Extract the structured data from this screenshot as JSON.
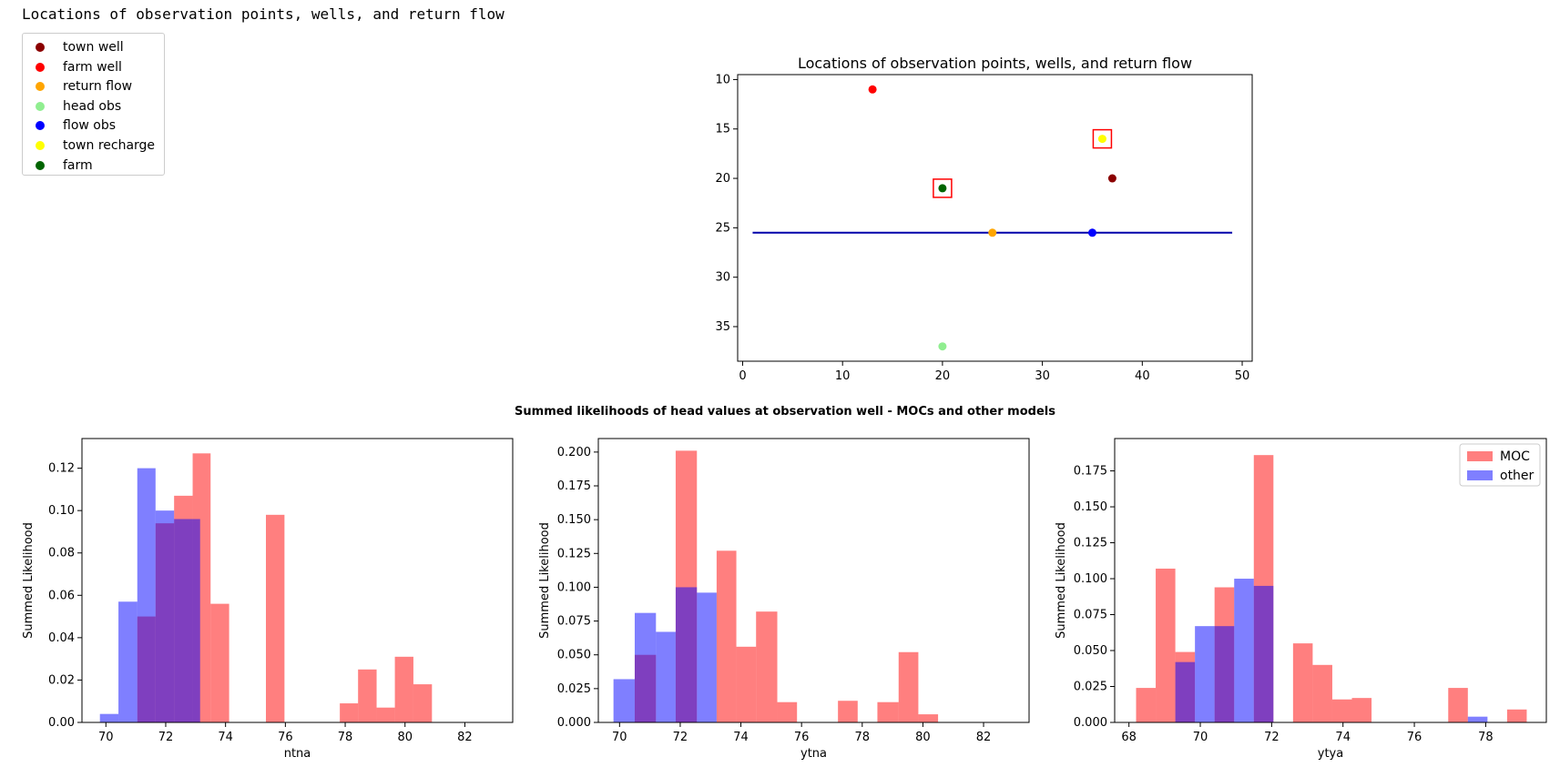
{
  "output_text": "Locations of observation points, wells, and return flow",
  "legend_items": [
    {
      "label": "town well",
      "color": "#8b0000"
    },
    {
      "label": "farm well",
      "color": "#ff0000"
    },
    {
      "label": "return flow",
      "color": "#ffa500"
    },
    {
      "label": "head obs",
      "color": "#90ee90"
    },
    {
      "label": "flow obs",
      "color": "#0000ff"
    },
    {
      "label": "town recharge",
      "color": "#ffff00"
    },
    {
      "label": "farm",
      "color": "#006400"
    }
  ],
  "suptitle": "Summed likelihoods of head values at observation well - MOCs and other models",
  "chart_data": [
    {
      "type": "scatter",
      "title": "Locations of observation points, wells, and return flow",
      "xlim": [
        -0.5,
        51
      ],
      "ylim": [
        9.5,
        38.5
      ],
      "y_inverted": true,
      "xticks": [
        "0",
        "10",
        "20",
        "30",
        "40",
        "50"
      ],
      "yticks": [
        "10",
        "15",
        "20",
        "25",
        "30",
        "35"
      ],
      "points": [
        {
          "x": 37,
          "y": 20,
          "color": "#8b0000"
        },
        {
          "x": 13,
          "y": 11,
          "color": "#ff0000"
        },
        {
          "x": 25,
          "y": 25.5,
          "color": "#ffa500"
        },
        {
          "x": 20,
          "y": 37,
          "color": "#90ee90"
        },
        {
          "x": 35,
          "y": 25.5,
          "color": "#0000ff"
        },
        {
          "x": 36,
          "y": 16,
          "color": "#ffff00"
        },
        {
          "x": 20,
          "y": 21,
          "color": "#006400"
        }
      ],
      "boxes": [
        {
          "x": 20,
          "y": 21,
          "color": "#ff0000"
        },
        {
          "x": 36,
          "y": 16,
          "color": "#ff0000"
        }
      ],
      "line": {
        "x1": 1,
        "x2": 49,
        "y": 25.5,
        "color": "#0000aa"
      }
    },
    {
      "type": "bar",
      "xlabel": "ntna",
      "ylabel": "Summed Likelihood",
      "xlim": [
        69.2,
        83.6
      ],
      "ylim": [
        0,
        0.134
      ],
      "xticks": [
        "70",
        "72",
        "74",
        "76",
        "78",
        "80",
        "82"
      ],
      "yticks": [
        "0.00",
        "0.02",
        "0.04",
        "0.06",
        "0.08",
        "0.10",
        "0.12"
      ],
      "series": [
        {
          "name": "MOC",
          "color": "rgba(255,0,0,0.5)",
          "bars": [
            {
              "x0": 71.05,
              "x1": 71.66,
              "h": 0.05
            },
            {
              "x0": 71.66,
              "x1": 72.28,
              "h": 0.094
            },
            {
              "x0": 72.28,
              "x1": 72.9,
              "h": 0.107
            },
            {
              "x0": 72.9,
              "x1": 73.5,
              "h": 0.127
            },
            {
              "x0": 73.5,
              "x1": 74.12,
              "h": 0.056
            },
            {
              "x0": 75.35,
              "x1": 75.97,
              "h": 0.098
            },
            {
              "x0": 77.82,
              "x1": 78.43,
              "h": 0.009
            },
            {
              "x0": 78.43,
              "x1": 79.05,
              "h": 0.025
            },
            {
              "x0": 79.05,
              "x1": 79.66,
              "h": 0.007
            },
            {
              "x0": 79.66,
              "x1": 80.28,
              "h": 0.031
            },
            {
              "x0": 80.28,
              "x1": 80.9,
              "h": 0.018
            }
          ]
        },
        {
          "name": "other",
          "color": "rgba(0,0,255,0.5)",
          "bars": [
            {
              "x0": 69.8,
              "x1": 70.42,
              "h": 0.004
            },
            {
              "x0": 70.42,
              "x1": 71.05,
              "h": 0.057
            },
            {
              "x0": 71.05,
              "x1": 71.66,
              "h": 0.12
            },
            {
              "x0": 71.66,
              "x1": 72.28,
              "h": 0.1
            },
            {
              "x0": 72.28,
              "x1": 72.9,
              "h": 0.096
            },
            {
              "x0": 72.9,
              "x1": 73.15,
              "h": 0.096
            }
          ]
        }
      ]
    },
    {
      "type": "bar",
      "xlabel": "ytna",
      "ylabel": "Summed Likelihood",
      "xlim": [
        69.3,
        83.5
      ],
      "ylim": [
        0,
        0.21
      ],
      "xticks": [
        "70",
        "72",
        "74",
        "76",
        "78",
        "80",
        "82"
      ],
      "yticks": [
        "0.000",
        "0.025",
        "0.050",
        "0.075",
        "0.100",
        "0.125",
        "0.150",
        "0.175",
        "0.200"
      ],
      "series": [
        {
          "name": "MOC",
          "color": "rgba(255,0,0,0.5)",
          "bars": [
            {
              "x0": 70.5,
              "x1": 71.2,
              "h": 0.05
            },
            {
              "x0": 71.85,
              "x1": 72.55,
              "h": 0.201
            },
            {
              "x0": 73.2,
              "x1": 73.85,
              "h": 0.127
            },
            {
              "x0": 73.85,
              "x1": 74.5,
              "h": 0.056
            },
            {
              "x0": 74.5,
              "x1": 75.2,
              "h": 0.082
            },
            {
              "x0": 75.2,
              "x1": 75.85,
              "h": 0.015
            },
            {
              "x0": 77.2,
              "x1": 77.85,
              "h": 0.016
            },
            {
              "x0": 78.5,
              "x1": 79.2,
              "h": 0.015
            },
            {
              "x0": 79.2,
              "x1": 79.85,
              "h": 0.052
            },
            {
              "x0": 79.85,
              "x1": 80.5,
              "h": 0.006
            }
          ]
        },
        {
          "name": "other",
          "color": "rgba(0,0,255,0.5)",
          "bars": [
            {
              "x0": 69.8,
              "x1": 70.5,
              "h": 0.032
            },
            {
              "x0": 70.5,
              "x1": 71.2,
              "h": 0.081
            },
            {
              "x0": 71.2,
              "x1": 71.85,
              "h": 0.067
            },
            {
              "x0": 71.85,
              "x1": 72.55,
              "h": 0.1
            },
            {
              "x0": 72.55,
              "x1": 73.2,
              "h": 0.096
            }
          ]
        }
      ]
    },
    {
      "type": "bar",
      "xlabel": "ytya",
      "ylabel": "Summed Likelihood",
      "xlim": [
        67.6,
        79.7
      ],
      "ylim": [
        0,
        0.1975
      ],
      "xticks": [
        "68",
        "70",
        "72",
        "74",
        "76",
        "78"
      ],
      "yticks": [
        "0.000",
        "0.025",
        "0.050",
        "0.075",
        "0.100",
        "0.125",
        "0.150",
        "0.175"
      ],
      "legend": "top-right",
      "series": [
        {
          "name": "MOC",
          "color": "rgba(255,0,0,0.5)",
          "bars": [
            {
              "x0": 68.2,
              "x1": 68.75,
              "h": 0.024
            },
            {
              "x0": 68.75,
              "x1": 69.3,
              "h": 0.107
            },
            {
              "x0": 69.3,
              "x1": 69.85,
              "h": 0.049
            },
            {
              "x0": 70.4,
              "x1": 70.95,
              "h": 0.094
            },
            {
              "x0": 71.5,
              "x1": 72.05,
              "h": 0.186
            },
            {
              "x0": 72.6,
              "x1": 73.15,
              "h": 0.055
            },
            {
              "x0": 73.15,
              "x1": 73.7,
              "h": 0.04
            },
            {
              "x0": 73.7,
              "x1": 74.25,
              "h": 0.016
            },
            {
              "x0": 74.25,
              "x1": 74.8,
              "h": 0.017
            },
            {
              "x0": 76.95,
              "x1": 77.5,
              "h": 0.024
            },
            {
              "x0": 78.6,
              "x1": 79.15,
              "h": 0.009
            }
          ]
        },
        {
          "name": "other",
          "color": "rgba(0,0,255,0.5)",
          "bars": [
            {
              "x0": 69.3,
              "x1": 69.85,
              "h": 0.042
            },
            {
              "x0": 69.85,
              "x1": 70.4,
              "h": 0.067
            },
            {
              "x0": 70.4,
              "x1": 70.95,
              "h": 0.067
            },
            {
              "x0": 70.95,
              "x1": 71.5,
              "h": 0.1
            },
            {
              "x0": 71.5,
              "x1": 72.05,
              "h": 0.095
            },
            {
              "x0": 77.5,
              "x1": 78.05,
              "h": 0.004
            }
          ]
        }
      ]
    }
  ]
}
